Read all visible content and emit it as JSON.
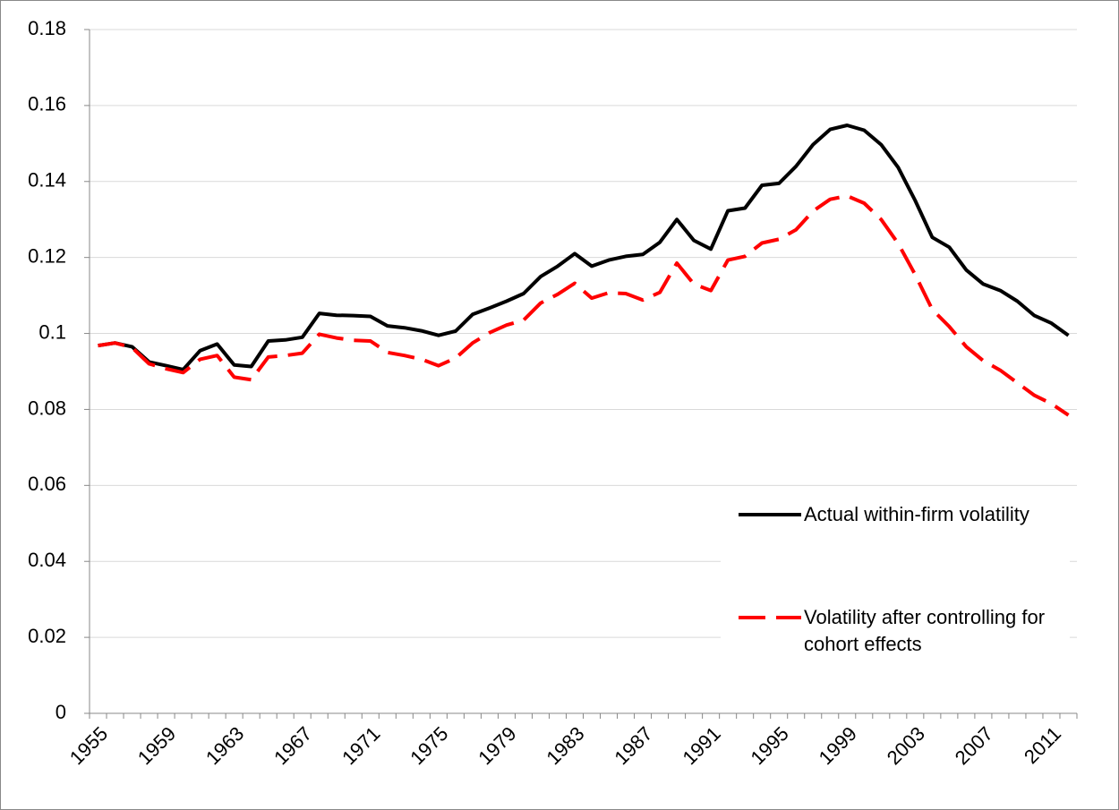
{
  "chart_data": {
    "type": "line",
    "categories": [
      "1955",
      null,
      null,
      null,
      "1959",
      null,
      null,
      null,
      "1963",
      null,
      null,
      null,
      "1967",
      null,
      null,
      null,
      "1971",
      null,
      null,
      null,
      "1975",
      null,
      null,
      null,
      "1979",
      null,
      null,
      null,
      "1983",
      null,
      null,
      null,
      "1987",
      null,
      null,
      null,
      "1991",
      null,
      null,
      null,
      "1995",
      null,
      null,
      null,
      "1999",
      null,
      null,
      null,
      "2003",
      null,
      null,
      null,
      "2007",
      null,
      null,
      null,
      "2011",
      null
    ],
    "series": [
      {
        "name": "Actual within-firm volatility",
        "color": "#000000",
        "dash": "solid",
        "values": [
          0.0968,
          0.0975,
          0.0965,
          0.0925,
          0.0915,
          0.0905,
          0.0955,
          0.0972,
          0.0917,
          0.0913,
          0.098,
          0.0983,
          0.099,
          0.1053,
          0.1048,
          0.1047,
          0.1045,
          0.102,
          0.1015,
          0.1007,
          0.0995,
          0.1006,
          0.105,
          0.1067,
          0.1085,
          0.1105,
          0.115,
          0.1177,
          0.121,
          0.1177,
          0.1193,
          0.1203,
          0.1208,
          0.124,
          0.13,
          0.1245,
          0.1222,
          0.1323,
          0.133,
          0.139,
          0.1395,
          0.144,
          0.1497,
          0.1537,
          0.1548,
          0.1535,
          0.1497,
          0.1437,
          0.135,
          0.1253,
          0.1227,
          0.1167,
          0.113,
          0.1113,
          0.1085,
          0.1047,
          0.1027,
          0.0995
        ]
      },
      {
        "name": "Volatility after controlling for cohort effects",
        "color": "#ff0000",
        "dash": "dashed",
        "values": [
          0.0968,
          0.0975,
          0.0963,
          0.092,
          0.0907,
          0.0897,
          0.0932,
          0.0942,
          0.0885,
          0.0878,
          0.0938,
          0.0942,
          0.0948,
          0.0998,
          0.0988,
          0.0982,
          0.098,
          0.095,
          0.0942,
          0.0932,
          0.0915,
          0.0935,
          0.0975,
          0.1002,
          0.1022,
          0.1035,
          0.108,
          0.1103,
          0.1132,
          0.1093,
          0.1107,
          0.1105,
          0.1088,
          0.1108,
          0.1185,
          0.113,
          0.1113,
          0.1193,
          0.1203,
          0.1238,
          0.1248,
          0.1273,
          0.1322,
          0.1353,
          0.1362,
          0.1343,
          0.13,
          0.1237,
          0.1155,
          0.1063,
          0.1018,
          0.0965,
          0.0928,
          0.0903,
          0.087,
          0.0837,
          0.0815,
          0.0785
        ]
      }
    ],
    "ylim": [
      0,
      0.18
    ],
    "yticks": [
      0,
      0.02,
      0.04,
      0.06,
      0.08,
      0.1,
      0.12,
      0.14,
      0.16,
      0.18
    ],
    "grid": true,
    "legend": "lower-right"
  }
}
